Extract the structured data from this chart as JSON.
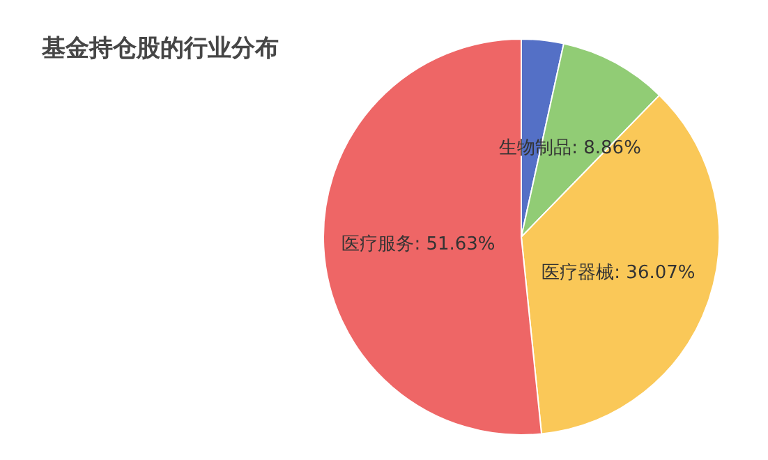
{
  "chart_data": {
    "type": "pie",
    "title": "基金持仓股的行业分布",
    "categories": [
      null,
      "生物制品",
      "医疗器械",
      "医疗服务"
    ],
    "values": [
      3.44,
      8.86,
      36.07,
      51.63
    ],
    "value_labels": [
      null,
      "8.86%",
      "36.07%",
      "51.63%"
    ],
    "colors": [
      "#5470c6",
      "#91cc75",
      "#fac858",
      "#ee6666"
    ]
  }
}
